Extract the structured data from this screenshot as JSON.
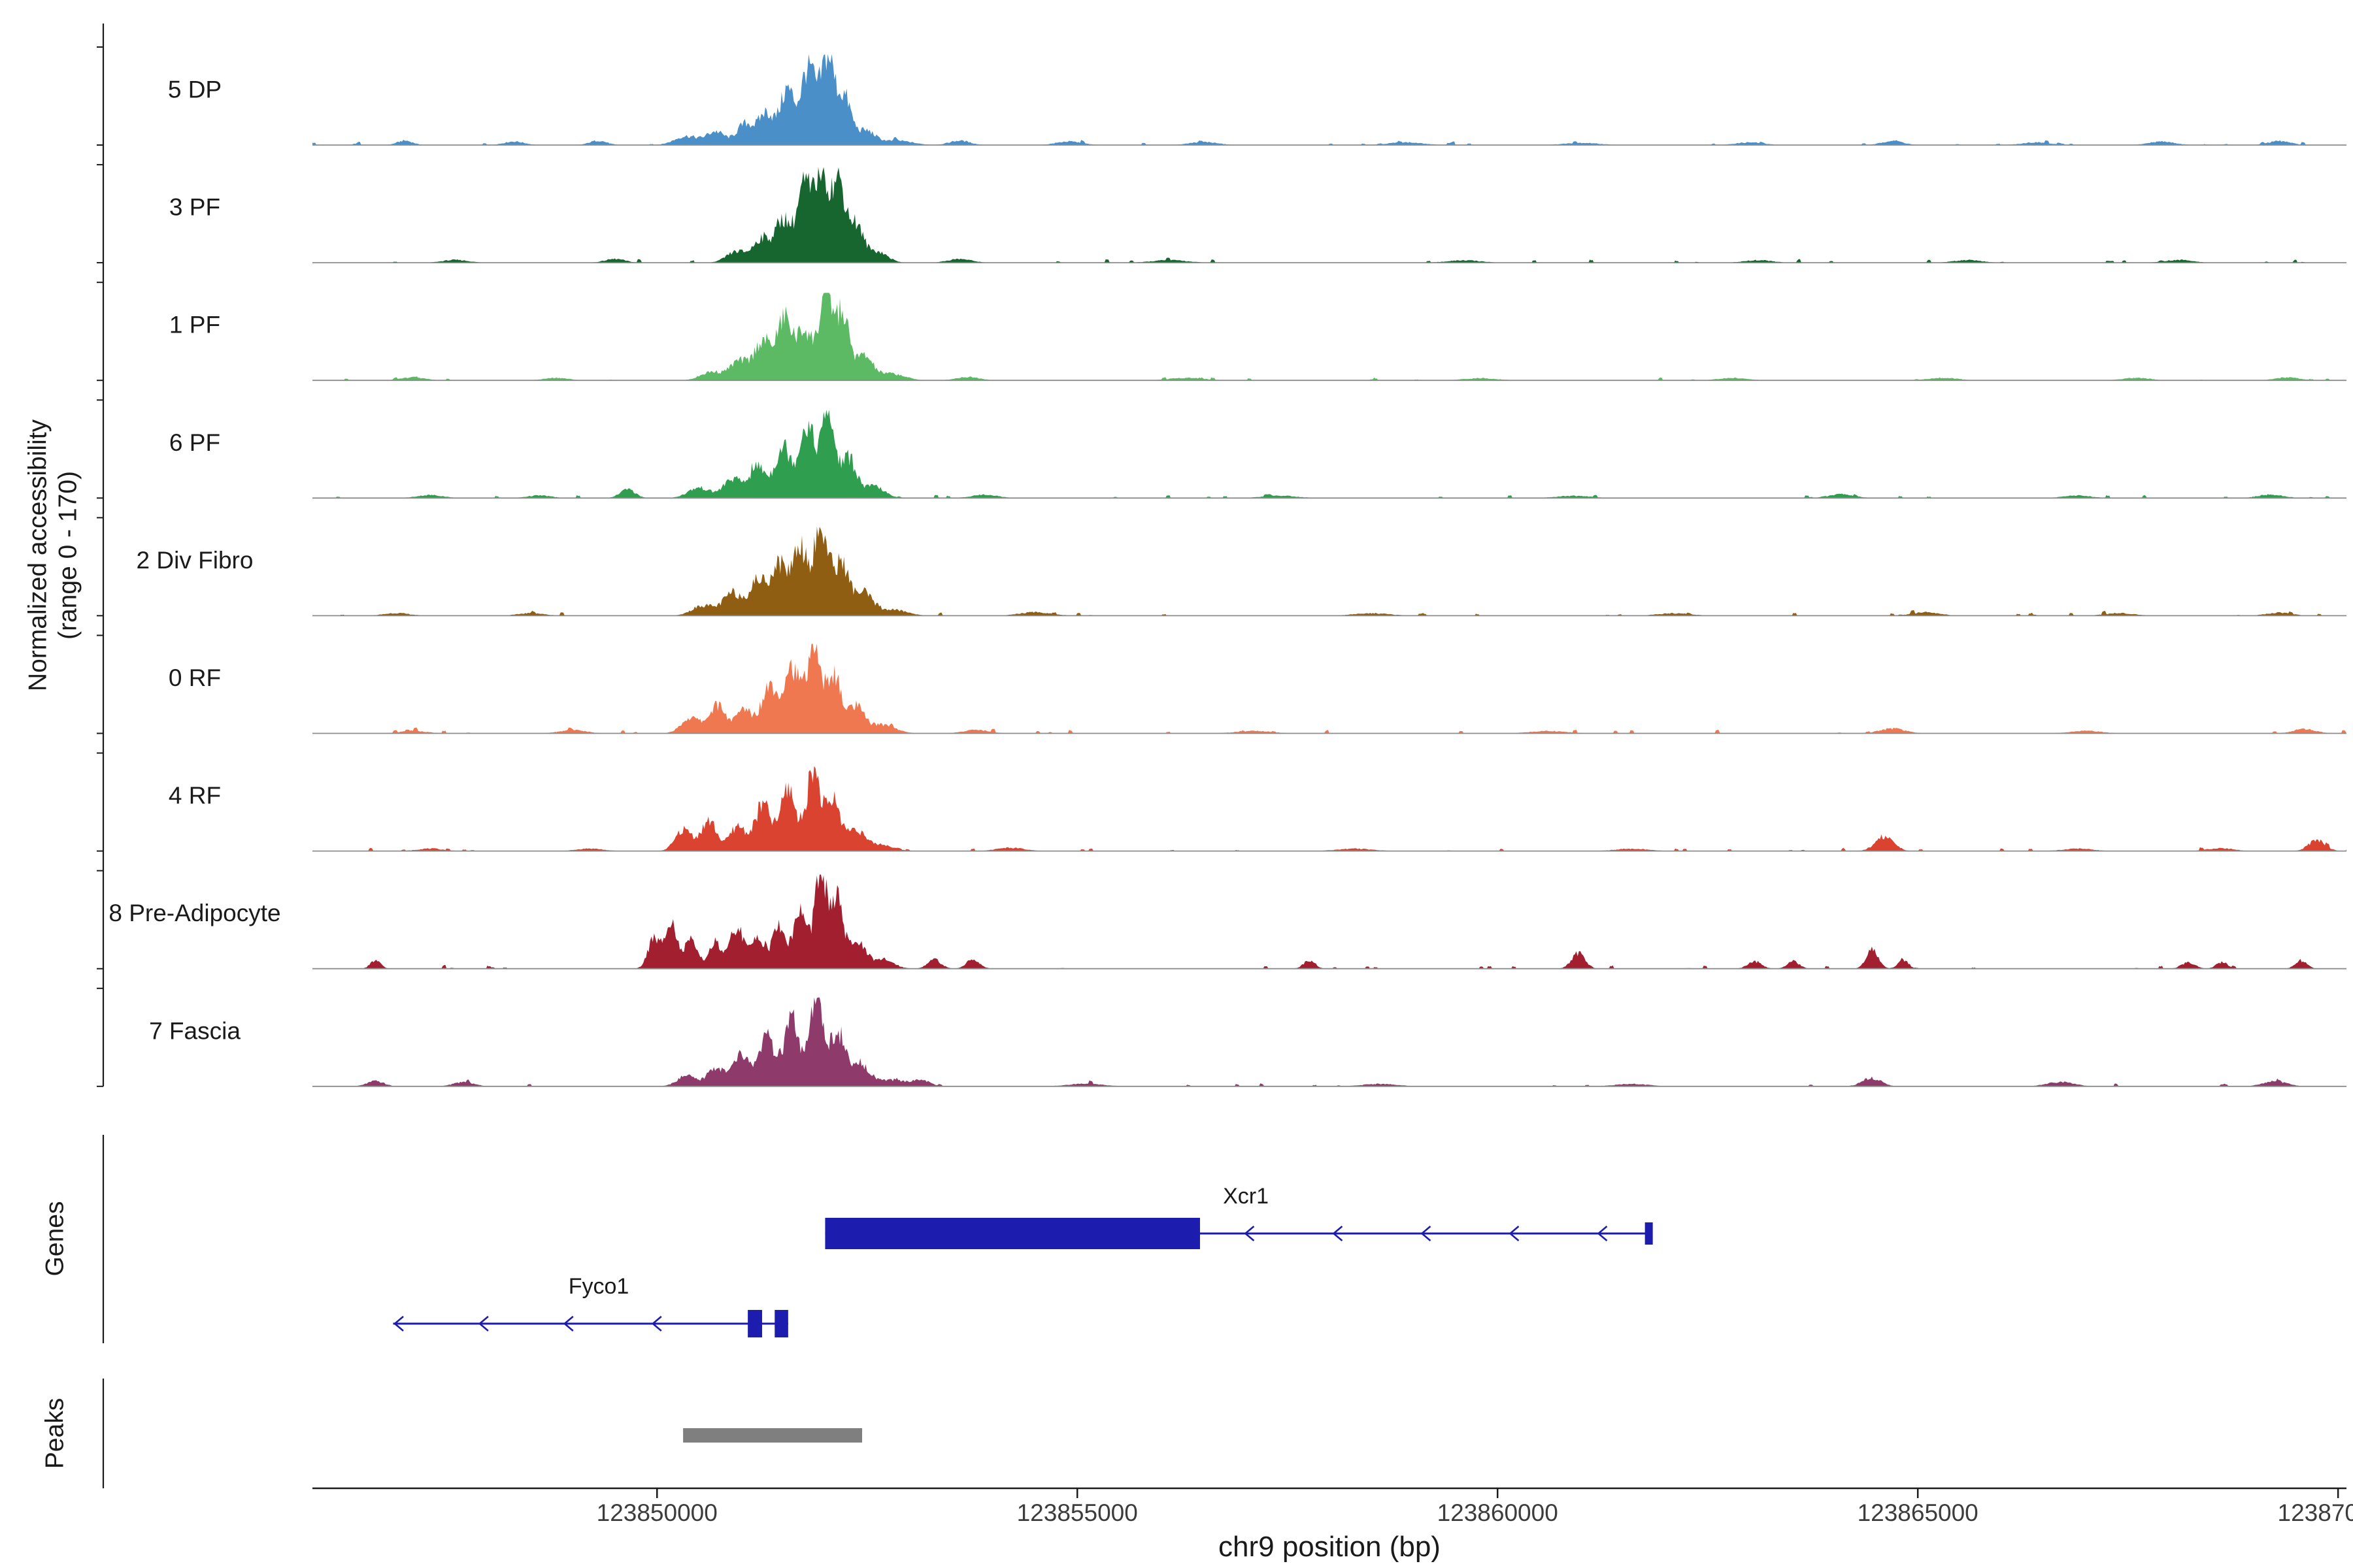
{
  "y_axis": {
    "line1": "Normalized accessibility",
    "line2": "(range 0 - 170)",
    "y_range": [
      0,
      170
    ]
  },
  "sections": {
    "genes": "Genes",
    "peaks": "Peaks"
  },
  "x_axis": {
    "title": "chr9 position (bp)",
    "min_bp": 123845900,
    "max_bp": 123870100,
    "ticks": [
      {
        "bp": 123850000,
        "label": "123850000"
      },
      {
        "bp": 123855000,
        "label": "123855000"
      },
      {
        "bp": 123860000,
        "label": "123860000"
      },
      {
        "bp": 123865000,
        "label": "123865000"
      },
      {
        "bp": 123870000,
        "label": "123870000"
      }
    ]
  },
  "chart_data": {
    "type": "area",
    "subtype": "genome_coverage_tracks",
    "chromosome": "chr9",
    "y_range": [
      0,
      170
    ],
    "gene_color": "#1c1cae",
    "peak_color": "#7f7f7f",
    "baseline_color": "#8c8c8c",
    "tracks": [
      {
        "label": "5 DP",
        "color": "#4a8fc7",
        "amp": 135,
        "seed": 1,
        "bumps": [
          [
            123850350,
            140,
            0.1
          ],
          [
            123850700,
            110,
            0.15
          ],
          [
            123851050,
            100,
            0.24
          ],
          [
            123851300,
            90,
            0.36
          ],
          [
            123851550,
            85,
            0.62
          ],
          [
            123851800,
            85,
            0.88
          ],
          [
            123852030,
            80,
            1.0
          ],
          [
            123852230,
            80,
            0.52
          ],
          [
            123852480,
            110,
            0.16
          ],
          [
            123852850,
            180,
            0.05
          ],
          [
            123847000,
            90,
            0.05
          ],
          [
            123848300,
            120,
            0.04
          ],
          [
            123849300,
            100,
            0.05
          ],
          [
            123853600,
            120,
            0.05
          ],
          [
            123854900,
            150,
            0.04
          ],
          [
            123856500,
            160,
            0.035
          ],
          [
            123858900,
            200,
            0.03
          ],
          [
            123861000,
            200,
            0.025
          ],
          [
            123863000,
            160,
            0.03
          ],
          [
            123864700,
            120,
            0.05
          ],
          [
            123866400,
            160,
            0.03
          ],
          [
            123867900,
            150,
            0.04
          ],
          [
            123869300,
            130,
            0.045
          ]
        ]
      },
      {
        "label": "3 PF",
        "color": "#17652f",
        "amp": 142,
        "seed": 2,
        "bumps": [
          [
            123850950,
            120,
            0.12
          ],
          [
            123851250,
            100,
            0.26
          ],
          [
            123851500,
            90,
            0.46
          ],
          [
            123851750,
            85,
            0.82
          ],
          [
            123851960,
            78,
            1.0
          ],
          [
            123852160,
            78,
            0.84
          ],
          [
            123852360,
            90,
            0.4
          ],
          [
            123852620,
            120,
            0.12
          ],
          [
            123847600,
            150,
            0.03
          ],
          [
            123849500,
            120,
            0.04
          ],
          [
            123853600,
            140,
            0.04
          ],
          [
            123856100,
            200,
            0.028
          ],
          [
            123859600,
            200,
            0.025
          ],
          [
            123863100,
            160,
            0.028
          ],
          [
            123865600,
            160,
            0.03
          ],
          [
            123868100,
            160,
            0.03
          ]
        ]
      },
      {
        "label": "1 PF",
        "color": "#5cb964",
        "amp": 130,
        "seed": 3,
        "bumps": [
          [
            123850650,
            130,
            0.1
          ],
          [
            123850980,
            110,
            0.22
          ],
          [
            123851260,
            100,
            0.46
          ],
          [
            123851520,
            90,
            0.72
          ],
          [
            123851760,
            88,
            0.58
          ],
          [
            123852010,
            82,
            1.0
          ],
          [
            123852210,
            78,
            0.74
          ],
          [
            123852460,
            100,
            0.28
          ],
          [
            123852780,
            160,
            0.08
          ],
          [
            123847100,
            140,
            0.035
          ],
          [
            123848800,
            140,
            0.03
          ],
          [
            123853700,
            140,
            0.04
          ],
          [
            123856300,
            200,
            0.03
          ],
          [
            123859800,
            200,
            0.025
          ],
          [
            123862800,
            170,
            0.028
          ],
          [
            123865300,
            170,
            0.03
          ],
          [
            123867600,
            160,
            0.03
          ],
          [
            123869400,
            140,
            0.035
          ]
        ]
      },
      {
        "label": "6 PF",
        "color": "#2f9e4e",
        "amp": 131,
        "seed": 4,
        "bumps": [
          [
            123849650,
            90,
            0.1
          ],
          [
            123850500,
            130,
            0.12
          ],
          [
            123850900,
            110,
            0.22
          ],
          [
            123851200,
            100,
            0.36
          ],
          [
            123851500,
            95,
            0.6
          ],
          [
            123851780,
            88,
            0.86
          ],
          [
            123852030,
            82,
            1.0
          ],
          [
            123852280,
            88,
            0.46
          ],
          [
            123852580,
            120,
            0.14
          ],
          [
            123847300,
            150,
            0.035
          ],
          [
            123848600,
            140,
            0.03
          ],
          [
            123853900,
            150,
            0.04
          ],
          [
            123857400,
            200,
            0.028
          ],
          [
            123860900,
            200,
            0.026
          ],
          [
            123864100,
            150,
            0.045
          ],
          [
            123866900,
            160,
            0.03
          ],
          [
            123869200,
            150,
            0.04
          ]
        ]
      },
      {
        "label": "2 Div Fibro",
        "color": "#8f5e12",
        "amp": 132,
        "seed": 5,
        "bumps": [
          [
            123850550,
            130,
            0.12
          ],
          [
            123850900,
            110,
            0.26
          ],
          [
            123851200,
            100,
            0.4
          ],
          [
            123851450,
            95,
            0.58
          ],
          [
            123851700,
            90,
            0.8
          ],
          [
            123851950,
            84,
            1.0
          ],
          [
            123852190,
            88,
            0.6
          ],
          [
            123852450,
            110,
            0.26
          ],
          [
            123852800,
            170,
            0.07
          ],
          [
            123846900,
            150,
            0.03
          ],
          [
            123848500,
            150,
            0.03
          ],
          [
            123854500,
            190,
            0.04
          ],
          [
            123858500,
            210,
            0.028
          ],
          [
            123862100,
            200,
            0.027
          ],
          [
            123865100,
            160,
            0.04
          ],
          [
            123867400,
            170,
            0.03
          ],
          [
            123869300,
            150,
            0.035
          ]
        ]
      },
      {
        "label": "0 RF",
        "color": "#f07850",
        "amp": 133,
        "seed": 6,
        "bumps": [
          [
            123850400,
            110,
            0.18
          ],
          [
            123850720,
            100,
            0.32
          ],
          [
            123851040,
            95,
            0.28
          ],
          [
            123851340,
            95,
            0.56
          ],
          [
            123851600,
            90,
            0.76
          ],
          [
            123851860,
            84,
            1.0
          ],
          [
            123852100,
            84,
            0.66
          ],
          [
            123852360,
            100,
            0.3
          ],
          [
            123852680,
            150,
            0.1
          ],
          [
            123847100,
            150,
            0.03
          ],
          [
            123849000,
            150,
            0.04
          ],
          [
            123853800,
            150,
            0.04
          ],
          [
            123857100,
            210,
            0.028
          ],
          [
            123860600,
            210,
            0.027
          ],
          [
            123864700,
            150,
            0.055
          ],
          [
            123867000,
            170,
            0.03
          ],
          [
            123869600,
            130,
            0.05
          ]
        ]
      },
      {
        "label": "4 RF",
        "color": "#d94330",
        "amp": 126,
        "seed": 7,
        "bumps": [
          [
            123850320,
            100,
            0.26
          ],
          [
            123850620,
            92,
            0.36
          ],
          [
            123850960,
            95,
            0.3
          ],
          [
            123851260,
            95,
            0.56
          ],
          [
            123851560,
            90,
            0.76
          ],
          [
            123851860,
            84,
            1.0
          ],
          [
            123852100,
            84,
            0.6
          ],
          [
            123852360,
            100,
            0.26
          ],
          [
            123852650,
            150,
            0.08
          ],
          [
            123847300,
            150,
            0.03
          ],
          [
            123849200,
            150,
            0.03
          ],
          [
            123854200,
            160,
            0.04
          ],
          [
            123858300,
            210,
            0.028
          ],
          [
            123861600,
            200,
            0.027
          ],
          [
            123864600,
            110,
            0.16
          ],
          [
            123866900,
            170,
            0.03
          ],
          [
            123868600,
            150,
            0.035
          ],
          [
            123869750,
            100,
            0.13
          ]
        ]
      },
      {
        "label": "8 Pre-Adipocyte",
        "color": "#a11f2e",
        "amp": 140,
        "seed": 8,
        "bumps": [
          [
            123849960,
            70,
            0.32
          ],
          [
            123850160,
            68,
            0.56
          ],
          [
            123850400,
            78,
            0.3
          ],
          [
            123850690,
            78,
            0.28
          ],
          [
            123850950,
            78,
            0.46
          ],
          [
            123851200,
            78,
            0.36
          ],
          [
            123851450,
            78,
            0.46
          ],
          [
            123851700,
            78,
            0.62
          ],
          [
            123851950,
            78,
            1.0
          ],
          [
            123852150,
            74,
            0.72
          ],
          [
            123852400,
            88,
            0.3
          ],
          [
            123852700,
            120,
            0.1
          ],
          [
            123846650,
            60,
            0.09
          ],
          [
            123853300,
            80,
            0.1
          ],
          [
            123853760,
            80,
            0.1
          ],
          [
            123857760,
            70,
            0.09
          ],
          [
            123860960,
            80,
            0.17
          ],
          [
            123863060,
            80,
            0.08
          ],
          [
            123863520,
            70,
            0.08
          ],
          [
            123864460,
            70,
            0.22
          ],
          [
            123864820,
            60,
            0.1
          ],
          [
            123868220,
            80,
            0.07
          ],
          [
            123868620,
            70,
            0.07
          ],
          [
            123869560,
            70,
            0.09
          ]
        ]
      },
      {
        "label": "7 Fascia",
        "color": "#8e3a6b",
        "amp": 132,
        "seed": 9,
        "bumps": [
          [
            123850350,
            110,
            0.12
          ],
          [
            123850700,
            100,
            0.22
          ],
          [
            123851000,
            95,
            0.36
          ],
          [
            123851300,
            95,
            0.56
          ],
          [
            123851600,
            90,
            0.76
          ],
          [
            123851900,
            84,
            1.0
          ],
          [
            123852150,
            84,
            0.62
          ],
          [
            123852420,
            110,
            0.26
          ],
          [
            123852800,
            170,
            0.07
          ],
          [
            123846650,
            100,
            0.06
          ],
          [
            123847700,
            120,
            0.05
          ],
          [
            123853150,
            100,
            0.07
          ],
          [
            123855100,
            200,
            0.03
          ],
          [
            123858600,
            200,
            0.028
          ],
          [
            123861600,
            200,
            0.027
          ],
          [
            123864450,
            110,
            0.1
          ],
          [
            123866700,
            160,
            0.05
          ],
          [
            123869250,
            140,
            0.06
          ]
        ]
      }
    ],
    "genes": [
      {
        "name": "Xcr1",
        "strand": "-",
        "line": [
          123852000,
          123861800
        ],
        "exons": [
          [
            123852000,
            123856460,
            48
          ]
        ],
        "end_tick": [
          123861800,
          12,
          34
        ],
        "arrows": [
          123857000,
          123858050,
          123859100,
          123860150,
          123861200
        ],
        "label_bp": 123857005
      },
      {
        "name": "Fyco1",
        "strand": "-",
        "line": [
          123846860,
          123851560
        ],
        "exons": [
          [
            123851080,
            123851250,
            42
          ],
          [
            123851400,
            123851560,
            42
          ]
        ],
        "end_tick": null,
        "arrows": [
          123846880,
          123847890,
          123848900,
          123849950
        ],
        "label_bp": 123849306
      }
    ],
    "peaks": [
      {
        "start": 123850310,
        "end": 123852440
      }
    ]
  }
}
